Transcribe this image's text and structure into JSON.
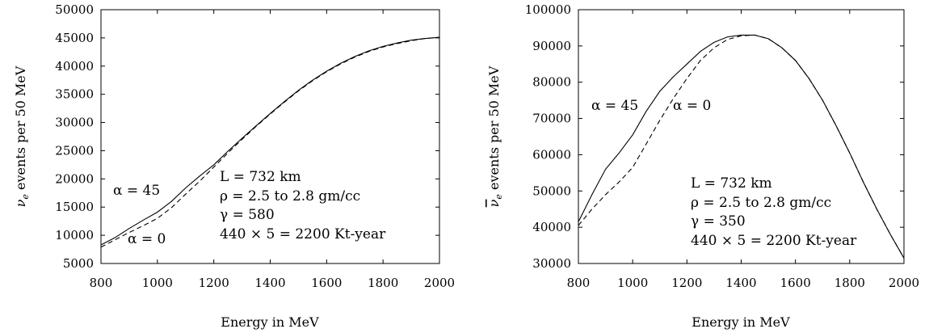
{
  "chart_data": [
    {
      "type": "line",
      "title": "",
      "xlabel": "Energy in MeV",
      "ylabel": "νe events per 50 MeV",
      "xlim": [
        800,
        2000
      ],
      "ylim": [
        5000,
        50000
      ],
      "xticks": [
        800,
        1000,
        1200,
        1400,
        1600,
        1800,
        2000
      ],
      "yticks": [
        5000,
        10000,
        15000,
        20000,
        25000,
        30000,
        35000,
        40000,
        45000,
        50000
      ],
      "grid": false,
      "series": [
        {
          "name": "α = 45",
          "style": "solid",
          "color": "#000000",
          "x": [
            800,
            850,
            900,
            950,
            1000,
            1050,
            1100,
            1150,
            1200,
            1250,
            1300,
            1350,
            1400,
            1450,
            1500,
            1550,
            1600,
            1650,
            1700,
            1750,
            1800,
            1850,
            1900,
            1950,
            2000
          ],
          "y": [
            8300,
            9600,
            11200,
            12700,
            14100,
            16000,
            18400,
            20500,
            22500,
            24900,
            27200,
            29400,
            31600,
            33700,
            35700,
            37500,
            39100,
            40500,
            41700,
            42700,
            43500,
            44100,
            44600,
            44900,
            45100
          ]
        },
        {
          "name": "α = 0",
          "style": "dashed",
          "color": "#000000",
          "x": [
            800,
            850,
            900,
            950,
            1000,
            1050,
            1100,
            1150,
            1200,
            1250,
            1300,
            1350,
            1400,
            1450,
            1500,
            1550,
            1600,
            1650,
            1700,
            1750,
            1800,
            1850,
            1900,
            1950,
            2000
          ],
          "y": [
            7900,
            9200,
            10500,
            11700,
            13000,
            14900,
            17300,
            19600,
            22100,
            24600,
            27000,
            29300,
            31500,
            33600,
            35600,
            37400,
            39000,
            40400,
            41600,
            42600,
            43400,
            44000,
            44500,
            44900,
            45100
          ]
        }
      ],
      "annotations": {
        "alpha45": "α = 45",
        "alpha0": "α = 0",
        "params": [
          "L = 732 km",
          "ρ = 2.5 to 2.8 gm/cc",
          "γ = 580",
          "440 × 5 = 2200 Kt-year"
        ]
      }
    },
    {
      "type": "line",
      "title": "",
      "xlabel": "Energy in MeV",
      "ylabel": "ν̅e events per 50 MeV",
      "xlim": [
        800,
        2000
      ],
      "ylim": [
        30000,
        100000
      ],
      "xticks": [
        800,
        1000,
        1200,
        1400,
        1600,
        1800,
        2000
      ],
      "yticks": [
        30000,
        40000,
        50000,
        60000,
        70000,
        80000,
        90000,
        100000
      ],
      "grid": false,
      "series": [
        {
          "name": "α = 45",
          "style": "solid",
          "color": "#000000",
          "x": [
            800,
            850,
            900,
            950,
            1000,
            1050,
            1100,
            1150,
            1200,
            1250,
            1300,
            1350,
            1400,
            1450,
            1500,
            1550,
            1600,
            1650,
            1700,
            1750,
            1800,
            1850,
            1900,
            1950,
            2000
          ],
          "y": [
            41500,
            49000,
            56000,
            60500,
            65500,
            72000,
            77500,
            81500,
            85000,
            88500,
            91000,
            92500,
            93000,
            93000,
            92000,
            89500,
            86000,
            81000,
            75000,
            68000,
            60500,
            52500,
            45000,
            38000,
            31500
          ]
        },
        {
          "name": "α = 0",
          "style": "dashed",
          "color": "#000000",
          "x": [
            800,
            850,
            900,
            950,
            1000,
            1050,
            1100,
            1150,
            1200,
            1250,
            1300,
            1350,
            1400,
            1450,
            1500,
            1550,
            1600,
            1650,
            1700,
            1750,
            1800,
            1850,
            1900,
            1950,
            2000
          ],
          "y": [
            40500,
            45000,
            49000,
            52500,
            56500,
            63000,
            69500,
            75500,
            81000,
            86000,
            89500,
            91800,
            92800,
            93000,
            92000,
            89500,
            86000,
            81000,
            75000,
            68000,
            60500,
            52500,
            45000,
            38000,
            31500
          ]
        }
      ],
      "annotations": {
        "alpha45": "α = 45",
        "alpha0": "α = 0",
        "params": [
          "L = 732 km",
          "ρ = 2.5 to 2.8 gm/cc",
          "γ = 350",
          "440 × 5 = 2200 Kt-year"
        ]
      }
    }
  ]
}
